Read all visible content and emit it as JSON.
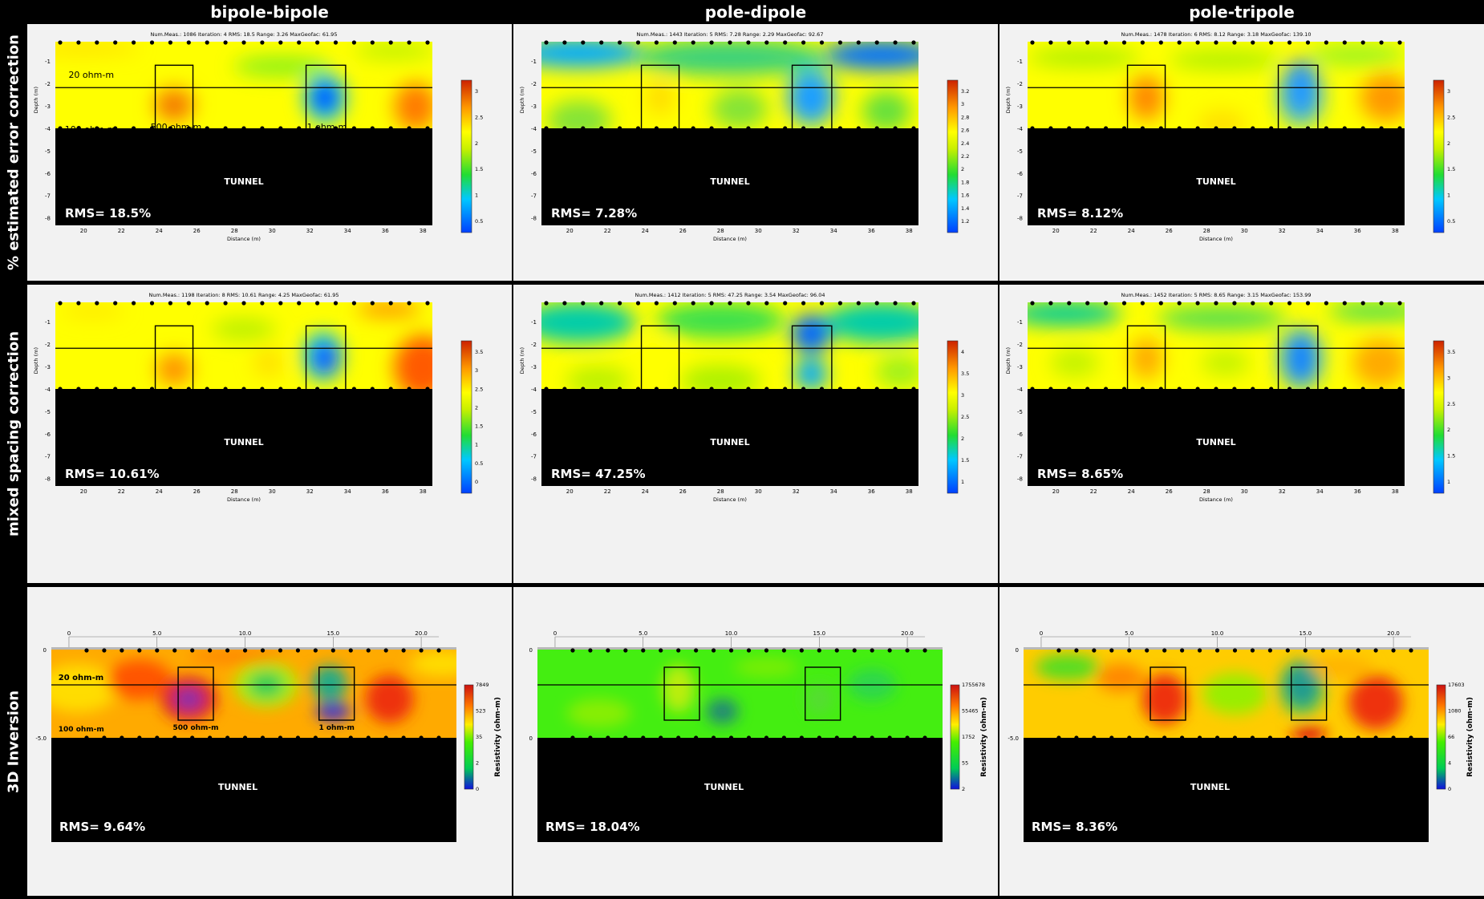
{
  "columns": [
    "bipole-bipole",
    "pole-dipole",
    "pole-tripole"
  ],
  "rows": [
    "% estimated error correction",
    "mixed spacing correction",
    "3D Inversion"
  ],
  "panels": [
    {
      "row": 0,
      "col": 0,
      "type": "2d",
      "header": "Num.Meas.: 1086   Iteration: 4   RMS: 18.5   Range: 3.26   MaxGeofac: 61.95",
      "rms": "RMS= 18.5%",
      "xticks": [
        "20",
        "22",
        "24",
        "26",
        "28",
        "30",
        "32",
        "34",
        "36",
        "38"
      ],
      "yticks": [
        "-1",
        "-2",
        "-3",
        "-4",
        "-5",
        "-6",
        "-7",
        "-8"
      ],
      "xlabel": "Distance (m)",
      "ylabel": "Depth (m)",
      "cbar": [
        "0.5",
        "1",
        "1.5",
        "2",
        "2.5",
        "3"
      ],
      "tunnel": "TUNNEL",
      "labels": [
        "20 ohm-m",
        "100 ohm-m",
        "500 ohm-m",
        "1 ohm-m"
      ]
    },
    {
      "row": 0,
      "col": 1,
      "type": "2d",
      "header": "Num.Meas.: 1443   Iteration: 5   RMS: 7.28   Range: 2.29   MaxGeofac: 92.67",
      "rms": "RMS= 7.28%",
      "xticks": [
        "20",
        "22",
        "24",
        "26",
        "28",
        "30",
        "32",
        "34",
        "36",
        "38"
      ],
      "yticks": [
        "-1",
        "-2",
        "-3",
        "-4",
        "-5",
        "-6",
        "-7",
        "-8"
      ],
      "xlabel": "Distance (m)",
      "ylabel": "Depth (m)",
      "cbar": [
        "1.2",
        "1.4",
        "1.6",
        "1.8",
        "2",
        "2.2",
        "2.4",
        "2.6",
        "2.8",
        "3",
        "3.2"
      ],
      "tunnel": "TUNNEL",
      "labels": []
    },
    {
      "row": 0,
      "col": 2,
      "type": "2d",
      "header": "Num.Meas.: 1478   Iteration: 6   RMS: 8.12   Range: 3.18   MaxGeofac: 139.10",
      "rms": "RMS= 8.12%",
      "xticks": [
        "20",
        "22",
        "24",
        "26",
        "28",
        "30",
        "32",
        "34",
        "36",
        "38"
      ],
      "yticks": [
        "-1",
        "-2",
        "-3",
        "-4",
        "-5",
        "-6",
        "-7",
        "-8"
      ],
      "xlabel": "Distance (m)",
      "ylabel": "Depth (m)",
      "cbar": [
        "0.5",
        "1",
        "1.5",
        "2",
        "2.5",
        "3"
      ],
      "tunnel": "TUNNEL",
      "labels": []
    },
    {
      "row": 1,
      "col": 0,
      "type": "2d",
      "header": "Num.Meas.: 1198   Iteration: 8   RMS: 10.61   Range: 4.25   MaxGeofac: 61.95",
      "rms": "RMS= 10.61%",
      "xticks": [
        "20",
        "22",
        "24",
        "26",
        "28",
        "30",
        "32",
        "34",
        "36",
        "38"
      ],
      "yticks": [
        "-1",
        "-2",
        "-3",
        "-4",
        "-5",
        "-6",
        "-7",
        "-8"
      ],
      "xlabel": "Distance (m)",
      "ylabel": "Depth (m)",
      "cbar": [
        "0",
        "0.5",
        "1",
        "1.5",
        "2",
        "2.5",
        "3",
        "3.5"
      ],
      "tunnel": "TUNNEL",
      "labels": []
    },
    {
      "row": 1,
      "col": 1,
      "type": "2d",
      "header": "Num.Meas.: 1412   Iteration: 5   RMS: 47.25   Range: 3.54   MaxGeofac: 96.04",
      "rms": "RMS= 47.25%",
      "xticks": [
        "20",
        "22",
        "24",
        "26",
        "28",
        "30",
        "32",
        "34",
        "36",
        "38"
      ],
      "yticks": [
        "-1",
        "-2",
        "-3",
        "-4",
        "-5",
        "-6",
        "-7",
        "-8"
      ],
      "xlabel": "Distance (m)",
      "ylabel": "Depth (m)",
      "cbar": [
        "1",
        "1.5",
        "2",
        "2.5",
        "3",
        "3.5",
        "4"
      ],
      "tunnel": "TUNNEL",
      "labels": []
    },
    {
      "row": 1,
      "col": 2,
      "type": "2d",
      "header": "Num.Meas.: 1452   Iteration: 5   RMS: 8.65   Range: 3.15   MaxGeofac: 153.99",
      "rms": "RMS= 8.65%",
      "xticks": [
        "20",
        "22",
        "24",
        "26",
        "28",
        "30",
        "32",
        "34",
        "36",
        "38"
      ],
      "yticks": [
        "-1",
        "-2",
        "-3",
        "-4",
        "-5",
        "-6",
        "-7",
        "-8"
      ],
      "xlabel": "Distance (m)",
      "ylabel": "Depth (m)",
      "cbar": [
        "1",
        "1.5",
        "2",
        "2.5",
        "3",
        "3.5"
      ],
      "tunnel": "TUNNEL",
      "labels": []
    },
    {
      "row": 2,
      "col": 0,
      "type": "3d",
      "rms": "RMS= 9.64%",
      "xticks": [
        "0",
        "5.0",
        "10.0",
        "15.0",
        "20.0"
      ],
      "yticks": [
        "0",
        "-5.0"
      ],
      "cbar": [
        "0",
        "2",
        "35",
        "523",
        "7849"
      ],
      "cbarTitle": "Resistivity (ohm-m)",
      "tunnel": "TUNNEL",
      "labels": [
        "20 ohm-m",
        "100 ohm-m",
        "500 ohm-m",
        "1 ohm-m"
      ]
    },
    {
      "row": 2,
      "col": 1,
      "type": "3d",
      "rms": "RMS= 18.04%",
      "xticks": [
        "0",
        "5.0",
        "10.0",
        "15.0",
        "20.0"
      ],
      "yticks": [
        "0",
        "0"
      ],
      "cbar": [
        "2",
        "55",
        "1752",
        "55465",
        "1755678"
      ],
      "cbarTitle": "Resistivity (ohm-m)",
      "tunnel": "TUNNEL",
      "labels": []
    },
    {
      "row": 2,
      "col": 2,
      "type": "3d",
      "rms": "RMS= 8.36%",
      "xticks": [
        "0",
        "5.0",
        "10.0",
        "15.0",
        "20.0"
      ],
      "yticks": [
        "0",
        "-5.0"
      ],
      "cbar": [
        "0",
        "4",
        "66",
        "1080",
        "17603"
      ],
      "cbarTitle": "Resistivity (ohm-m)",
      "tunnel": "TUNNEL",
      "labels": []
    }
  ],
  "chart_data": [
    {
      "type": "heatmap",
      "xlabel": "Distance (m)",
      "ylabel": "Depth (m)",
      "xlim": [
        18.5,
        38.5
      ],
      "ylim": [
        -8,
        0
      ],
      "targets": [
        {
          "x": [
            23.8,
            25.8
          ],
          "y": [
            -1.2,
            -4.1
          ]
        },
        {
          "x": [
            31.8,
            33.9
          ],
          "y": [
            -1.2,
            -4.1
          ]
        }
      ]
    },
    {
      "type": "heatmap",
      "xlabel": "",
      "ylabel": "",
      "xlim": [
        -1,
        22
      ],
      "ylim": [
        -5,
        0
      ],
      "targets": [
        {
          "x": [
            6.2,
            8.2
          ],
          "y": [
            -1,
            -4
          ]
        },
        {
          "x": [
            14.2,
            16.2
          ],
          "y": [
            -1,
            -4
          ]
        }
      ]
    }
  ]
}
